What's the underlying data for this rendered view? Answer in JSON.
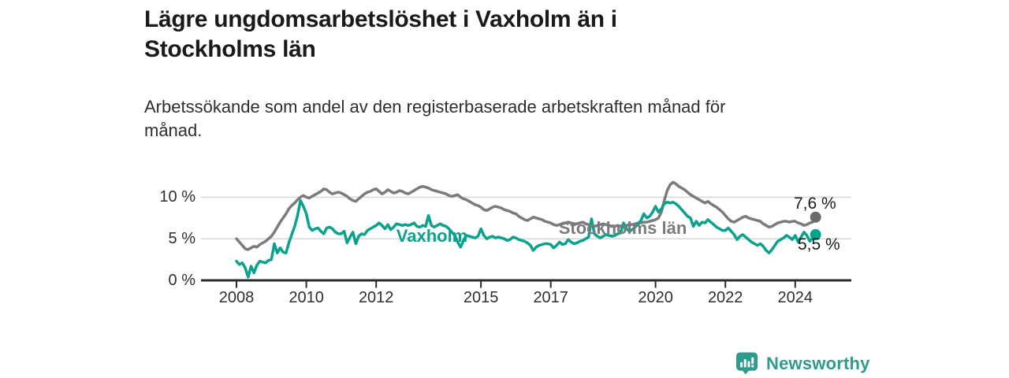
{
  "header": {
    "title": "Lägre ungdomsarbetslöshet i Vaxholm än i\nStockholms län",
    "subtitle": "Arbetssökande som andel av den registerbaserade arbetskraften månad för\nmånad."
  },
  "chart_data": {
    "type": "line",
    "title": "Lägre ungdomsarbetslöshet i Vaxholm än i Stockholms län",
    "subtitle": "Arbetssökande som andel av den registerbaserade arbetskraften månad för månad.",
    "unit": "%",
    "x_start_year": 2008,
    "x_points_per_year": 12,
    "x_ticks": [
      2008,
      2010,
      2012,
      2015,
      2017,
      2020,
      2022,
      2024
    ],
    "y_ticks": [
      0,
      5,
      10
    ],
    "y_tick_labels": [
      "0 %",
      "5 %",
      "10 %"
    ],
    "ylim": [
      0,
      12.5
    ],
    "xlim": [
      2007,
      2025.6
    ],
    "grid": "horizontal",
    "legend_position": "inline-labels",
    "series": [
      {
        "name": "Stockholms län",
        "color": "#7b7b7d",
        "dot_color": "#6b6b6d",
        "end_label": "7,6 %",
        "end_value": 7.6,
        "values": [
          5.0,
          4.6,
          4.2,
          3.8,
          3.7,
          3.9,
          4.1,
          4.0,
          4.3,
          4.5,
          4.7,
          5.0,
          5.3,
          5.8,
          6.4,
          7.0,
          7.5,
          8.0,
          8.6,
          9.0,
          9.3,
          9.7,
          10.0,
          10.2,
          10.0,
          9.9,
          10.1,
          10.3,
          10.5,
          10.7,
          11.0,
          10.9,
          10.6,
          10.4,
          10.5,
          10.6,
          10.5,
          10.3,
          10.1,
          9.8,
          9.6,
          9.5,
          9.8,
          10.1,
          10.4,
          10.6,
          10.7,
          10.9,
          11.0,
          10.7,
          10.4,
          10.6,
          10.9,
          10.7,
          10.5,
          10.6,
          10.8,
          10.7,
          10.5,
          10.4,
          10.6,
          10.8,
          11.0,
          11.2,
          11.3,
          11.2,
          11.1,
          10.9,
          10.8,
          10.7,
          10.6,
          10.5,
          10.4,
          10.2,
          10.1,
          10.2,
          10.3,
          10.0,
          9.8,
          9.7,
          9.5,
          9.3,
          9.1,
          9.0,
          8.8,
          8.5,
          8.4,
          8.6,
          8.8,
          8.9,
          8.8,
          8.7,
          8.5,
          8.4,
          8.3,
          8.1,
          8.0,
          7.7,
          7.5,
          7.3,
          7.2,
          7.4,
          7.6,
          7.5,
          7.4,
          7.3,
          7.1,
          7.0,
          6.9,
          6.7,
          6.6,
          6.7,
          6.8,
          6.9,
          7.0,
          6.9,
          6.8,
          6.8,
          6.9,
          7.0,
          6.8,
          6.7,
          6.6,
          6.5,
          6.6,
          6.7,
          6.8,
          6.7,
          6.6,
          6.5,
          6.5,
          6.6,
          6.5,
          6.5,
          6.6,
          6.7,
          6.7,
          6.8,
          6.9,
          6.9,
          7.0,
          7.0,
          7.1,
          7.2,
          7.3,
          7.5,
          8.2,
          9.6,
          10.8,
          11.5,
          11.8,
          11.6,
          11.3,
          11.1,
          10.9,
          10.6,
          10.3,
          10.1,
          9.9,
          9.7,
          9.5,
          9.3,
          9.5,
          9.2,
          9.0,
          8.8,
          8.5,
          8.2,
          7.8,
          7.4,
          7.1,
          7.0,
          7.2,
          7.4,
          7.6,
          7.7,
          7.5,
          7.4,
          7.3,
          7.2,
          7.1,
          6.8,
          6.6,
          6.4,
          6.5,
          6.7,
          6.9,
          7.0,
          7.1,
          7.1,
          7.0,
          7.1,
          7.1,
          6.9,
          6.8,
          6.6,
          6.7,
          6.9,
          7.0,
          7.6
        ]
      },
      {
        "name": "Vaxholm",
        "color": "#0aa28c",
        "dot_color": "#00a38e",
        "end_label": "5,5 %",
        "end_value": 5.5,
        "values": [
          2.3,
          1.9,
          2.1,
          1.5,
          0.4,
          1.7,
          0.9,
          1.8,
          2.3,
          2.2,
          2.1,
          2.4,
          2.5,
          4.4,
          3.3,
          3.9,
          3.4,
          3.3,
          4.5,
          5.5,
          6.5,
          7.8,
          9.6,
          8.9,
          8.0,
          6.4,
          6.0,
          6.2,
          6.3,
          5.9,
          5.6,
          6.3,
          6.4,
          6.2,
          5.8,
          5.6,
          5.6,
          5.9,
          4.5,
          5.2,
          5.8,
          4.4,
          5.3,
          5.6,
          5.5,
          6.0,
          6.2,
          6.4,
          6.6,
          6.9,
          6.6,
          6.2,
          6.7,
          6.1,
          6.4,
          6.8,
          6.7,
          6.6,
          6.7,
          6.6,
          6.7,
          6.9,
          6.5,
          6.4,
          6.6,
          6.5,
          7.8,
          6.6,
          6.4,
          6.6,
          6.8,
          6.6,
          6.5,
          6.2,
          5.8,
          5.4,
          4.6,
          4.0,
          4.8,
          5.4,
          5.3,
          5.2,
          5.1,
          5.3,
          6.2,
          5.4,
          5.0,
          5.2,
          5.3,
          5.1,
          5.2,
          5.1,
          5.0,
          4.8,
          4.9,
          5.2,
          5.1,
          4.9,
          4.8,
          4.7,
          4.5,
          4.2,
          3.6,
          4.0,
          4.2,
          4.3,
          4.4,
          4.4,
          4.3,
          3.9,
          4.2,
          4.6,
          4.3,
          4.4,
          4.9,
          4.6,
          4.4,
          4.5,
          4.7,
          4.8,
          5.0,
          5.2,
          7.4,
          5.6,
          5.3,
          5.1,
          5.3,
          5.5,
          5.4,
          5.3,
          5.4,
          5.6,
          5.7,
          6.9,
          6.2,
          5.9,
          6.1,
          6.4,
          6.8,
          7.2,
          8.0,
          7.5,
          7.7,
          8.2,
          8.9,
          8.2,
          8.6,
          9.2,
          9.4,
          9.3,
          9.4,
          9.2,
          8.9,
          8.5,
          8.1,
          7.7,
          7.5,
          6.5,
          7.1,
          6.6,
          7.0,
          6.9,
          7.3,
          7.0,
          6.7,
          6.4,
          6.2,
          6.0,
          6.0,
          6.3,
          5.9,
          5.5,
          4.9,
          5.3,
          5.5,
          5.2,
          4.9,
          4.6,
          4.4,
          4.2,
          4.4,
          4.1,
          3.6,
          3.3,
          3.7,
          4.2,
          4.7,
          4.9,
          5.1,
          5.4,
          5.2,
          4.9,
          5.4,
          4.6,
          5.2,
          5.8,
          5.4,
          4.7,
          5.1,
          5.5
        ]
      }
    ]
  },
  "colors": {
    "axis": "#2b2b2b",
    "grid": "#d9d9d9",
    "tick_text": "#2f2f2f",
    "background": "#ffffff"
  },
  "footer": {
    "brand": "Newsworthy",
    "brand_color": "#2e9b8e",
    "logo_icon": "bar-chart-speech-bubble-icon"
  }
}
